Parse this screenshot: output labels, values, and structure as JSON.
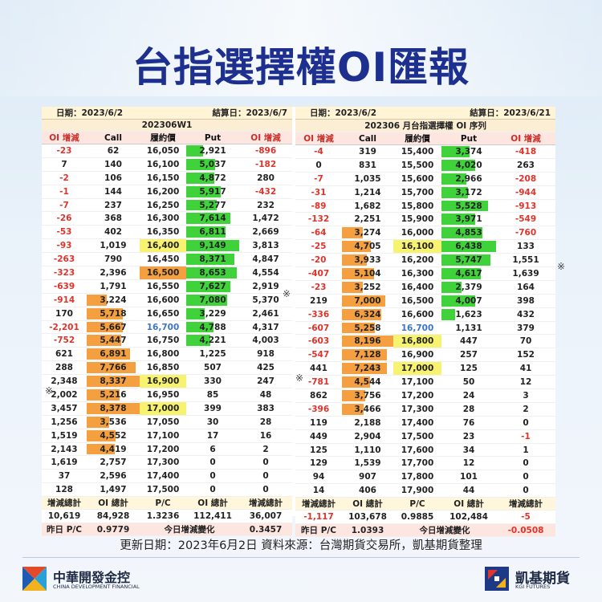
{
  "title": "台指選擇權OI匯報",
  "footnote": "更新日期：2023年6月2日   資料來源：台灣期貨交易所，凱基期貨整理",
  "left": {
    "date": "日期：2023/6/2",
    "settle": "結算日：2023/6/7",
    "series": "202306W1",
    "cols": [
      "OI 增減",
      "Call",
      "履約價",
      "Put",
      "OI 增減"
    ],
    "rows": [
      [
        "-23",
        "62",
        "16,050",
        "2,921",
        "-896"
      ],
      [
        "7",
        "140",
        "16,100",
        "5,037",
        "-182"
      ],
      [
        "-2",
        "106",
        "16,150",
        "4,872",
        "280"
      ],
      [
        "-1",
        "144",
        "16,200",
        "5,917",
        "-432"
      ],
      [
        "-7",
        "237",
        "16,250",
        "5,277",
        "232"
      ],
      [
        "-26",
        "368",
        "16,300",
        "7,614",
        "1,472"
      ],
      [
        "-53",
        "402",
        "16,350",
        "6,811",
        "2,669"
      ],
      [
        "-93",
        "1,019",
        "16,400",
        "9,149",
        "3,813"
      ],
      [
        "-263",
        "790",
        "16,450",
        "8,371",
        "4,847"
      ],
      [
        "-323",
        "2,396",
        "16,500",
        "8,653",
        "4,554"
      ],
      [
        "-639",
        "1,791",
        "16,550",
        "7,627",
        "2,919"
      ],
      [
        "-914",
        "3,224",
        "16,600",
        "7,080",
        "5,370"
      ],
      [
        "170",
        "5,718",
        "16,650",
        "3,229",
        "2,461"
      ],
      [
        "-2,201",
        "5,667",
        "16,700",
        "4,788",
        "4,317"
      ],
      [
        "-752",
        "5,447",
        "16,750",
        "4,221",
        "4,003"
      ],
      [
        "621",
        "6,891",
        "16,800",
        "1,225",
        "918"
      ],
      [
        "288",
        "7,766",
        "16,850",
        "507",
        "425"
      ],
      [
        "2,348",
        "8,337",
        "16,900",
        "330",
        "247"
      ],
      [
        "2,002",
        "5,216",
        "16,950",
        "85",
        "48"
      ],
      [
        "3,457",
        "8,378",
        "17,000",
        "399",
        "383"
      ],
      [
        "1,256",
        "3,536",
        "17,050",
        "30",
        "28"
      ],
      [
        "1,519",
        "4,552",
        "17,100",
        "17",
        "16"
      ],
      [
        "2,143",
        "4,419",
        "17,200",
        "6",
        "2"
      ],
      [
        "1,619",
        "2,757",
        "17,300",
        "0",
        "0"
      ],
      [
        "37",
        "2,596",
        "17,400",
        "0",
        "0"
      ],
      [
        "128",
        "1,497",
        "17,500",
        "0",
        "0"
      ]
    ],
    "hl_strikes": {
      "16,400": "#f7f270",
      "16,500": "#f4a040",
      "16,700": "blue",
      "16,900": "#f7f270",
      "17,000": "#f7f270"
    },
    "sum_labels": [
      "增減總計",
      "OI 總計",
      "P/C",
      "OI 總計",
      "增減總計"
    ],
    "sum_values": [
      "10,619",
      "84,928",
      "1.3236",
      "112,411",
      "36,007"
    ],
    "pc_label": "昨日 P/C",
    "pc_value": "0.9779",
    "chg_label": "今日增減變化",
    "chg_value": "0.3457"
  },
  "right": {
    "date": "日期：2023/6/2",
    "settle": "結算日：2023/6/21",
    "series": "202306 月台指選擇權 OI 序列",
    "cols": [
      "OI 增減",
      "Call",
      "履約價",
      "Put",
      "OI 增減"
    ],
    "rows": [
      [
        "-4",
        "319",
        "15,400",
        "3,374",
        "-418"
      ],
      [
        "0",
        "831",
        "15,500",
        "4,020",
        "263"
      ],
      [
        "-7",
        "1,035",
        "15,600",
        "2,966",
        "-208"
      ],
      [
        "-31",
        "1,214",
        "15,700",
        "3,172",
        "-944"
      ],
      [
        "-89",
        "1,682",
        "15,800",
        "5,528",
        "-913"
      ],
      [
        "-132",
        "2,251",
        "15,900",
        "3,971",
        "-549"
      ],
      [
        "-64",
        "3,274",
        "16,000",
        "4,853",
        "-760"
      ],
      [
        "-25",
        "4,705",
        "16,100",
        "6,438",
        "133"
      ],
      [
        "-20",
        "3,933",
        "16,200",
        "5,747",
        "1,551"
      ],
      [
        "-407",
        "5,104",
        "16,300",
        "4,617",
        "1,639"
      ],
      [
        "-23",
        "3,252",
        "16,400",
        "2,379",
        "164"
      ],
      [
        "219",
        "7,000",
        "16,500",
        "4,007",
        "398"
      ],
      [
        "-336",
        "6,324",
        "16,600",
        "1,623",
        "432"
      ],
      [
        "-607",
        "5,258",
        "16,700",
        "1,131",
        "379"
      ],
      [
        "-603",
        "8,196",
        "16,800",
        "447",
        "70"
      ],
      [
        "-547",
        "7,128",
        "16,900",
        "257",
        "152"
      ],
      [
        "441",
        "7,243",
        "17,000",
        "125",
        "41"
      ],
      [
        "-781",
        "4,544",
        "17,100",
        "50",
        "12"
      ],
      [
        "862",
        "3,756",
        "17,200",
        "24",
        "3"
      ],
      [
        "-396",
        "3,466",
        "17,300",
        "28",
        "2"
      ],
      [
        "119",
        "2,188",
        "17,400",
        "76",
        "0"
      ],
      [
        "449",
        "2,904",
        "17,500",
        "23",
        "-1"
      ],
      [
        "125",
        "1,110",
        "17,600",
        "34",
        "1"
      ],
      [
        "129",
        "1,539",
        "17,700",
        "12",
        "0"
      ],
      [
        "94",
        "907",
        "17,800",
        "101",
        "0"
      ],
      [
        "14",
        "406",
        "17,900",
        "44",
        "0"
      ]
    ],
    "hl_strikes": {
      "16,100": "#f7f270",
      "16,700": "blue",
      "16,800": "#f7f270",
      "17,000": "#f7f270"
    },
    "sum_labels": [
      "增減總計",
      "OI 總計",
      "P/C",
      "OI 總計",
      "增減總計"
    ],
    "sum_values": [
      "-1,117",
      "103,678",
      "0.9885",
      "102,484",
      "-5"
    ],
    "pc_label": "昨日 P/C",
    "pc_value": "1.0393",
    "chg_label": "今日增減變化",
    "chg_value": "-0.0508"
  },
  "mark": "※",
  "logo_left": {
    "cn": "中華開發金控",
    "en": "CHINA DEVELOPMENT FINANCIAL"
  },
  "logo_right": {
    "cn": "凱基期貨",
    "en": "KGI FUTURES"
  },
  "colors": {
    "call_bar": "#f4a040",
    "put_bar": "#3fd23a",
    "title": "#1d2f8f",
    "negative": "#e0332b"
  }
}
